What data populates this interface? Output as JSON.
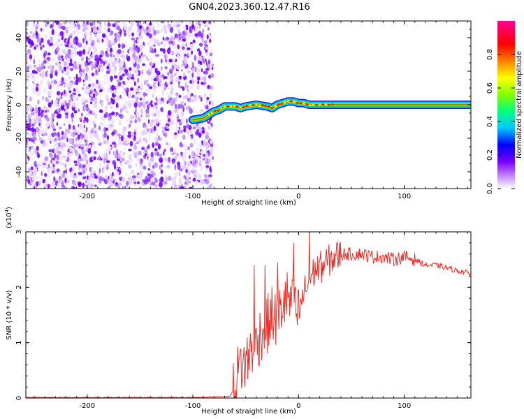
{
  "title": "GN04.2023.360.12.47.R16",
  "chart_data": [
    {
      "type": "heatmap",
      "xlabel": "Height of straight line (km)",
      "ylabel": "Frequency (Hz)",
      "xlim": [
        -258,
        163
      ],
      "ylim": [
        -50,
        50
      ],
      "x_ticks": [
        -200,
        -100,
        0,
        100
      ],
      "y_ticks": [
        -40,
        -20,
        0,
        20,
        40
      ],
      "colorbar": {
        "label": "Normalized spectral amplitude",
        "range": [
          0,
          1
        ],
        "ticks": [
          "0.0",
          "0.2",
          "0.4",
          "0.6",
          "0.8"
        ],
        "colors": [
          "#ffffff",
          "#c080ff",
          "#7a00ff",
          "#0000ff",
          "#00c8ff",
          "#00ff80",
          "#80ff00",
          "#ffff00",
          "#ff8000",
          "#ff0000",
          "#ff0090"
        ]
      },
      "noise_region_x": [
        -258,
        -80
      ],
      "signal_track": {
        "x": [
          -100,
          -90,
          -80,
          -75,
          -70,
          -60,
          -55,
          -50,
          -40,
          -30,
          -25,
          -20,
          -15,
          -10,
          -5,
          0,
          5,
          10,
          20,
          40,
          60,
          80,
          100,
          120,
          140,
          163
        ],
        "freq": [
          -9,
          -8,
          -4,
          -3,
          -1,
          -1,
          -2,
          -1,
          0,
          -1,
          -2,
          0,
          1,
          2,
          2,
          1,
          1,
          0,
          0,
          0,
          0,
          0,
          0,
          0,
          0,
          0
        ]
      }
    },
    {
      "type": "line",
      "xlabel": "Height of straight line (km)",
      "ylabel": "SNR (10 * v/v)",
      "y_multiplier": "(x10",
      "y_multiplier_exp": "4",
      "y_multiplier_close": ")",
      "xlim": [
        -258,
        163
      ],
      "ylim": [
        0,
        3
      ],
      "x_ticks": [
        -200,
        -100,
        0,
        100
      ],
      "y_ticks": [
        0,
        1,
        2,
        3
      ],
      "color": "#e8302a",
      "series": [
        {
          "x": [
            -258,
            -100,
            -65,
            -60,
            -58,
            -55,
            -50,
            -45,
            -40,
            -35,
            -30,
            -25,
            -20,
            -15,
            -10,
            -5,
            0,
            5,
            10,
            15,
            20,
            30,
            40,
            50,
            60,
            70,
            80,
            90,
            100,
            110,
            120,
            130,
            140,
            150,
            163
          ],
          "values": [
            0.01,
            0.01,
            0.03,
            0.2,
            0.4,
            0.6,
            0.6,
            0.9,
            1.0,
            1.2,
            1.3,
            1.5,
            1.4,
            1.7,
            1.8,
            1.6,
            1.5,
            1.9,
            2.1,
            2.3,
            2.35,
            2.5,
            2.6,
            2.6,
            2.6,
            2.55,
            2.55,
            2.5,
            2.55,
            2.5,
            2.4,
            2.4,
            2.35,
            2.3,
            2.25
          ]
        }
      ],
      "spikes": [
        {
          "x": -42,
          "value": 2.4
        },
        {
          "x": -32,
          "value": 2.4
        },
        {
          "x": -20,
          "value": 2.45
        },
        {
          "x": -5,
          "value": 2.8
        },
        {
          "x": 10,
          "value": 3.0
        }
      ]
    }
  ]
}
